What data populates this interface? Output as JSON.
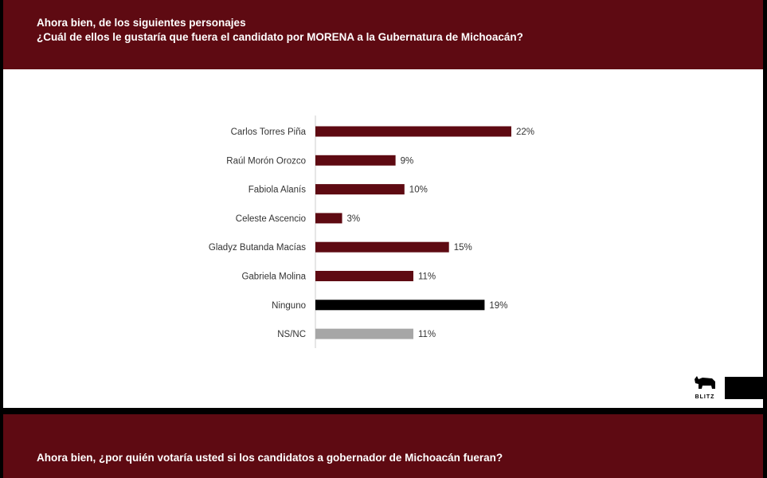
{
  "header": {
    "line1": "Ahora bien, de los siguientes personajes",
    "line2": "¿Cuál de ellos le gustaría que fuera el candidato por MORENA a la Gubernatura de Michoacán?"
  },
  "next_slide": {
    "title": "Ahora bien, ¿por quién votaría usted si los candidatos a gobernador de Michoacán fueran?"
  },
  "logo": {
    "text": "BLITZ",
    "icon": "rhino-icon"
  },
  "chart_data": {
    "type": "bar",
    "orientation": "horizontal",
    "categories": [
      "Carlos Torres Piña",
      "Raúl Morón Orozco",
      "Fabiola Alanís",
      "Celeste Ascencio",
      "Gladyz Butanda Macías",
      "Gabriela Molina",
      "Ninguno",
      "NS/NC"
    ],
    "values": [
      22,
      9,
      10,
      3,
      15,
      11,
      19,
      11
    ],
    "labels": [
      "22%",
      "9%",
      "10%",
      "3%",
      "15%",
      "11%",
      "19%",
      "11%"
    ],
    "colors": [
      "#5e0a12",
      "#5e0a12",
      "#5e0a12",
      "#5e0a12",
      "#5e0a12",
      "#5e0a12",
      "#000000",
      "#a6a6a6"
    ],
    "unit": "%",
    "grid": false,
    "legend": "none"
  }
}
